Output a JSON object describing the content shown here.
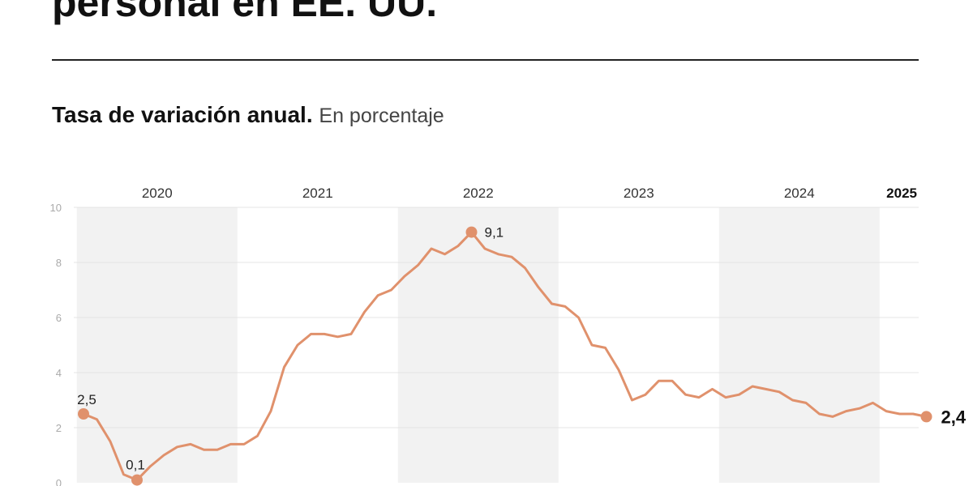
{
  "header": {
    "title": "personal en EE. UU.",
    "subtitle_bold": "Tasa de variación anual.",
    "subtitle_light": "En porcentaje"
  },
  "colors": {
    "line": "#e0916c",
    "band": "#f2f2f2",
    "grid": "#e4e4e4"
  },
  "chart_data": {
    "type": "line",
    "title": "Tasa de variación anual.",
    "ylabel": "En porcentaje",
    "ylim": [
      0,
      10
    ],
    "yticks": [
      "0",
      "2",
      "4",
      "6",
      "8",
      "10"
    ],
    "grid": true,
    "years": [
      "2020",
      "2021",
      "2022",
      "2023",
      "2024",
      "2025"
    ],
    "x_start": "2020-01",
    "series": [
      {
        "values": [
          2.5,
          2.3,
          1.5,
          0.3,
          0.1,
          0.6,
          1.0,
          1.3,
          1.4,
          1.2,
          1.2,
          1.4,
          1.4,
          1.7,
          2.6,
          4.2,
          5.0,
          5.4,
          5.4,
          5.3,
          5.4,
          6.2,
          6.8,
          7.0,
          7.5,
          7.9,
          8.5,
          8.3,
          8.6,
          9.1,
          8.5,
          8.3,
          8.2,
          7.8,
          7.1,
          6.5,
          6.4,
          6.0,
          5.0,
          4.9,
          4.1,
          3.0,
          3.2,
          3.7,
          3.7,
          3.2,
          3.1,
          3.4,
          3.1,
          3.2,
          3.5,
          3.4,
          3.3,
          3.0,
          2.9,
          2.5,
          2.4,
          2.6,
          2.7,
          2.9,
          2.6,
          2.5,
          2.5,
          2.4
        ]
      }
    ],
    "annotations": [
      {
        "index": 0,
        "label": "2,5"
      },
      {
        "index": 4,
        "label": "0,1"
      },
      {
        "index": 29,
        "label": "9,1"
      },
      {
        "index": 63,
        "label": "2,4"
      }
    ]
  }
}
